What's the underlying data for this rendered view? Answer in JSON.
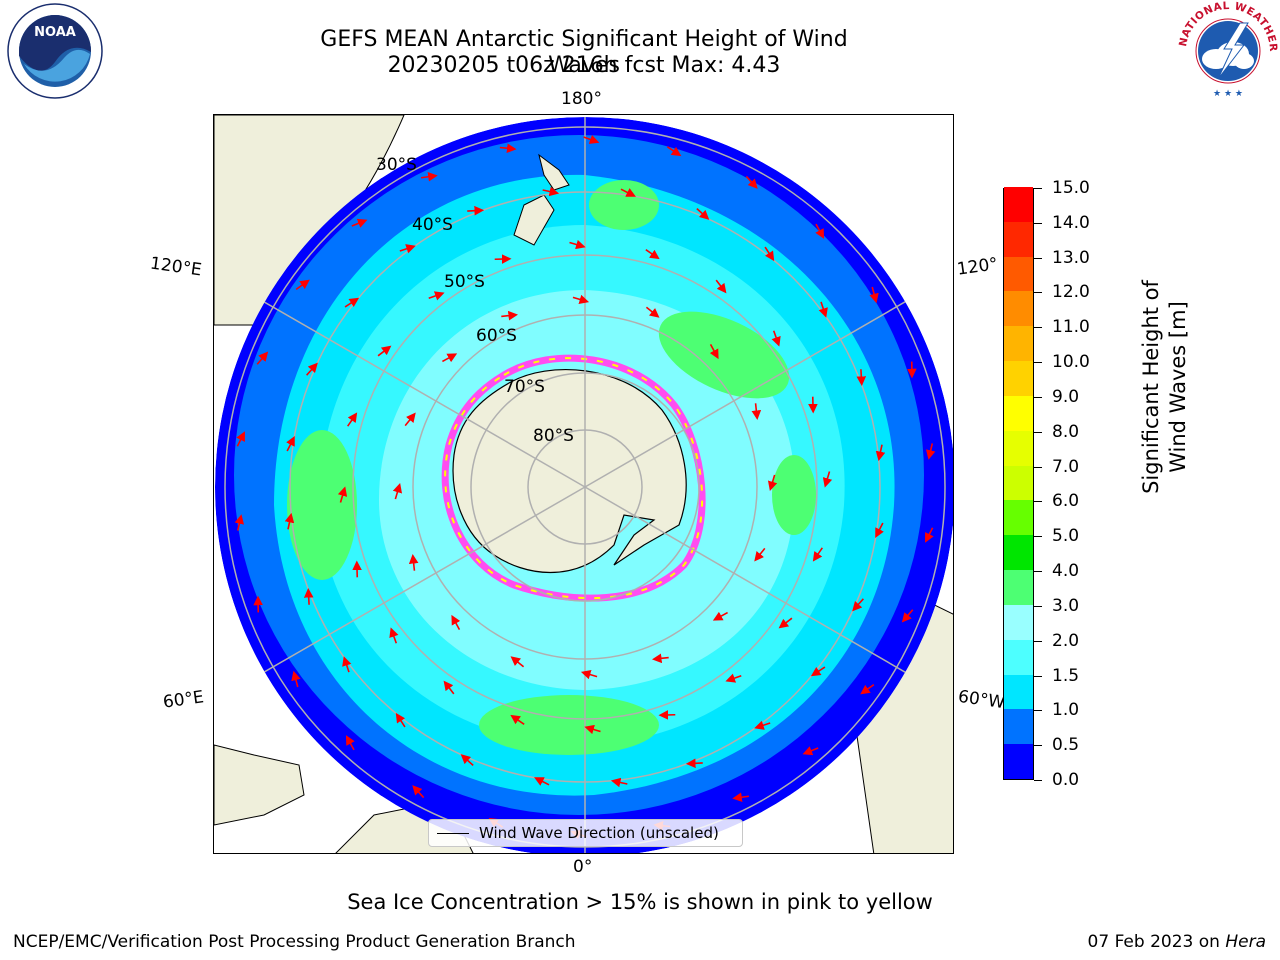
{
  "header": {
    "title_line1": "GEFS MEAN Antarctic Significant Height of Wind Waves",
    "title_line2": "20230205 t06z 216h fcst   Max: 4.43"
  },
  "logos": {
    "noaa_text": "NOAA",
    "nws_ring_text": "NATIONAL WEATHER SERVICE"
  },
  "map": {
    "longitude_labels": [
      "180°",
      "0°",
      "120°E",
      "120°",
      "60°E",
      "60°W"
    ],
    "latitude_labels": [
      "30°S",
      "40°S",
      "50°S",
      "60°S",
      "70°S",
      "80°S"
    ],
    "legend_label": "Wind Wave Direction (unscaled)"
  },
  "colorbar": {
    "title": "Significant Height of Wind Waves [m]",
    "tick_labels": [
      "0.0",
      "0.5",
      "1.0",
      "1.5",
      "2.0",
      "3.0",
      "4.0",
      "5.0",
      "6.0",
      "7.0",
      "8.0",
      "9.0",
      "10.0",
      "11.0",
      "12.0",
      "13.0",
      "14.0",
      "15.0"
    ],
    "colors": [
      "#0000ff",
      "#0073ff",
      "#00e6ff",
      "#4dffff",
      "#99ffff",
      "#4dff73",
      "#00e600",
      "#66ff00",
      "#ccff00",
      "#e6ff00",
      "#ffff00",
      "#ffd200",
      "#ffb400",
      "#ff8c00",
      "#ff5a00",
      "#ff2800",
      "#ff0000"
    ]
  },
  "footer": {
    "note": "Sea Ice Concentration > 15% is shown in pink to yellow",
    "left": "NCEP/EMC/Verification Post Processing Product Generation Branch",
    "right_prefix": "07 Feb 2023 on ",
    "right_machine": "Hera"
  }
}
